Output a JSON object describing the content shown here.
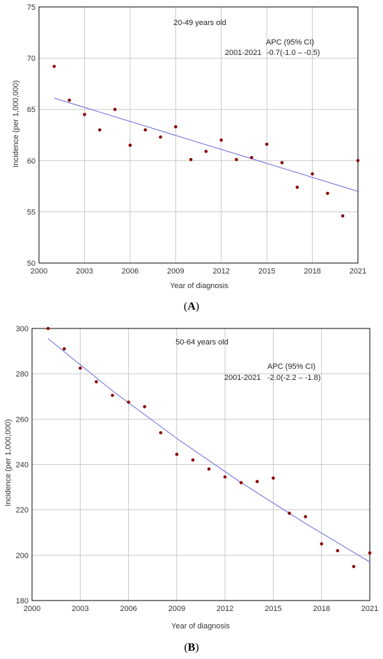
{
  "chart_data": [
    {
      "type": "scatter",
      "panel": "(A)",
      "panel_letter": "A",
      "annotation_title": "20-49 years old",
      "apc_header": "APC (95% CI)",
      "apc_period": "2001-2021",
      "apc_value": "-0.7(-1.0 – -0.5)",
      "xlabel": "Year of diagnosis",
      "ylabel": "Incidence (per 1,000,000)",
      "xlim": [
        2000,
        2021
      ],
      "ylim": [
        50,
        75
      ],
      "x_ticks": [
        2000,
        2003,
        2006,
        2009,
        2012,
        2015,
        2018,
        2021
      ],
      "y_ticks": [
        50,
        55,
        60,
        65,
        70,
        75
      ],
      "grid": true,
      "point_color": "#8b0000",
      "line_color": "#6666dd",
      "x": [
        2001,
        2002,
        2003,
        2004,
        2005,
        2006,
        2007,
        2008,
        2009,
        2010,
        2011,
        2012,
        2013,
        2014,
        2015,
        2016,
        2017,
        2018,
        2019,
        2020,
        2021
      ],
      "values": [
        69.2,
        65.9,
        64.5,
        63.0,
        65.0,
        61.5,
        63.0,
        62.3,
        63.3,
        60.1,
        60.9,
        62.0,
        60.1,
        60.3,
        61.6,
        59.8,
        57.4,
        58.7,
        56.8,
        54.6,
        60.0
      ],
      "trend": {
        "x": [
          2001,
          2021
        ],
        "y": [
          66.1,
          57.0
        ]
      }
    },
    {
      "type": "scatter",
      "panel": "(B)",
      "panel_letter": "B",
      "annotation_title": "50-64 years old",
      "apc_header": "APC (95% CI)",
      "apc_period": "2001-2021",
      "apc_value": "-2.0(-2.2 – -1.8)",
      "xlabel": "Year of diagnosis",
      "ylabel": "Incidence (per 1,000,000)",
      "xlim": [
        2000,
        2021
      ],
      "ylim": [
        180,
        300
      ],
      "x_ticks": [
        2000,
        2003,
        2006,
        2009,
        2012,
        2015,
        2018,
        2021
      ],
      "y_ticks": [
        180,
        200,
        220,
        240,
        260,
        280,
        300
      ],
      "grid": true,
      "point_color": "#8b0000",
      "line_color": "#6666dd",
      "x": [
        2001,
        2002,
        2003,
        2004,
        2005,
        2006,
        2007,
        2008,
        2009,
        2010,
        2011,
        2012,
        2013,
        2014,
        2015,
        2016,
        2017,
        2018,
        2019,
        2020,
        2021
      ],
      "values": [
        300.0,
        291.0,
        282.5,
        276.5,
        270.5,
        267.5,
        265.5,
        254.0,
        244.5,
        242.0,
        238.0,
        234.5,
        232.0,
        232.5,
        234.0,
        218.5,
        217.0,
        205.0,
        202.0,
        195.0,
        201.0
      ],
      "trend": {
        "x": [
          2001,
          2005,
          2009,
          2013,
          2017,
          2021
        ],
        "y": [
          295.5,
          272.5,
          251.5,
          232.0,
          214.0,
          197.0
        ]
      }
    }
  ]
}
